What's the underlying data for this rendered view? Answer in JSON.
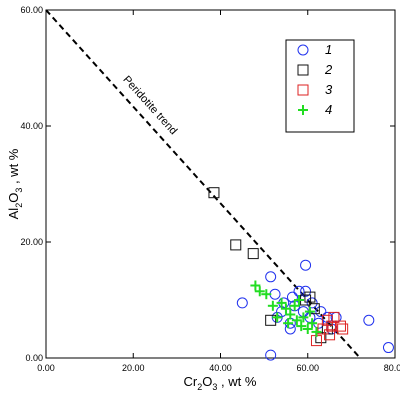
{
  "chart_data": {
    "type": "scatter",
    "xlabel": {
      "main": "Cr",
      "sub1": "2",
      "mid": "O",
      "sub2": "3",
      "tail": " , wt %"
    },
    "ylabel": {
      "main": "Al",
      "sub1": "2",
      "mid": "O",
      "sub2": "3",
      "tail": " , wt %"
    },
    "xlim": [
      0,
      80
    ],
    "ylim": [
      0,
      60
    ],
    "xticks": [
      "0.00",
      "20.00",
      "40.00",
      "60.00",
      "80.00"
    ],
    "yticks": [
      "0.00",
      "20.00",
      "40.00",
      "60.00"
    ],
    "trend_line": {
      "label": "Peridotite trend",
      "from": [
        0,
        60
      ],
      "to": [
        72,
        0
      ]
    },
    "legend_position": "top-right",
    "series": [
      {
        "name": "1",
        "marker": "circle",
        "color": "#2233ee",
        "points": [
          [
            45,
            9.5
          ],
          [
            51.5,
            14
          ],
          [
            52.5,
            11
          ],
          [
            53,
            7
          ],
          [
            54,
            8
          ],
          [
            54.5,
            9.5
          ],
          [
            56,
            6
          ],
          [
            56.5,
            10.5
          ],
          [
            57,
            9
          ],
          [
            58,
            11.5
          ],
          [
            59,
            8
          ],
          [
            59.5,
            11.5
          ],
          [
            59.5,
            16
          ],
          [
            60.5,
            7
          ],
          [
            61,
            9.5
          ],
          [
            62.5,
            6
          ],
          [
            63,
            8
          ],
          [
            64.5,
            7
          ],
          [
            65.5,
            5
          ],
          [
            66.5,
            7
          ],
          [
            74,
            6.5
          ],
          [
            78.5,
            1.8
          ],
          [
            51.5,
            0.5
          ],
          [
            56,
            5
          ]
        ]
      },
      {
        "name": "2",
        "marker": "square",
        "color": "#111111",
        "points": [
          [
            38.5,
            28.5
          ],
          [
            43.5,
            19.5
          ],
          [
            47.5,
            18
          ],
          [
            51.5,
            6.5
          ],
          [
            59.5,
            10
          ],
          [
            60.5,
            10.5
          ],
          [
            61.5,
            8.5
          ],
          [
            63,
            3.5
          ],
          [
            64.5,
            5
          ]
        ]
      },
      {
        "name": "3",
        "marker": "square",
        "color": "#dd2222",
        "points": [
          [
            62,
            3
          ],
          [
            63.5,
            5
          ],
          [
            64.5,
            6.5
          ],
          [
            65,
            4
          ],
          [
            65.5,
            5.5
          ],
          [
            66,
            7
          ],
          [
            67.5,
            5.5
          ],
          [
            68,
            5
          ]
        ]
      },
      {
        "name": "4",
        "marker": "plus",
        "color": "#22dd22",
        "points": [
          [
            48,
            12.5
          ],
          [
            49,
            11.5
          ],
          [
            50.5,
            11
          ],
          [
            52,
            9
          ],
          [
            53,
            7
          ],
          [
            54,
            9.5
          ],
          [
            55,
            8.5
          ],
          [
            55.5,
            6
          ],
          [
            56,
            7.5
          ],
          [
            57,
            9
          ],
          [
            57.5,
            6.5
          ],
          [
            58,
            10
          ],
          [
            58.5,
            5.5
          ],
          [
            59,
            7
          ],
          [
            60,
            5
          ],
          [
            60.5,
            8
          ],
          [
            61,
            6
          ],
          [
            62,
            4.5
          ]
        ]
      }
    ]
  }
}
